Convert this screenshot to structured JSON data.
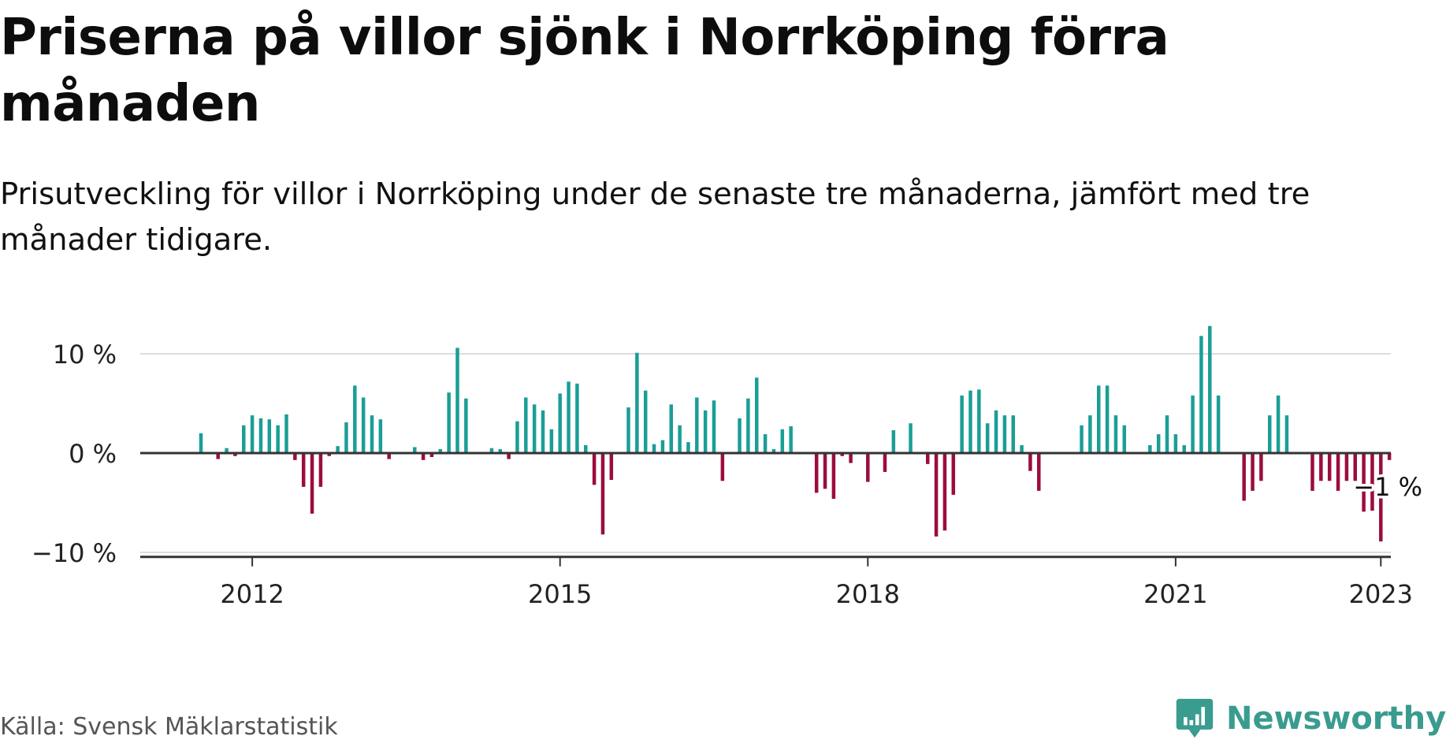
{
  "header": {
    "title": "Priserna på villor sjönk i Norrköping förra månaden",
    "subtitle": "Prisutveckling för villor i Norrköping under de senaste tre månaderna, jämfört med tre månader tidigare."
  },
  "footer": {
    "source": "Källa: Svensk Mäklarstatistik",
    "brand": "Newsworthy"
  },
  "colors": {
    "positive": "#1a9e97",
    "negative": "#9b0d3d",
    "axis": "#333333",
    "grid": "#dddddd",
    "brand": "#3a9b8f"
  },
  "chart_data": {
    "type": "bar",
    "start_month": "2011-07",
    "y_tick_labels": [
      "10 %",
      "0 %",
      "−10 %"
    ],
    "y_ticks": [
      10,
      0,
      -10
    ],
    "ylim": [
      -10.3,
      10.3
    ],
    "x_tick_labels": [
      "2012",
      "2015",
      "2018",
      "2021",
      "2023"
    ],
    "x_ticks": [
      "2012-01",
      "2015-01",
      "2018-01",
      "2021-01",
      "2023-01"
    ],
    "annotation": {
      "text": "−1 %",
      "month": "2023-02",
      "value": -0.7
    },
    "values": [
      2.0,
      0,
      -0.6,
      0.5,
      -0.3,
      2.8,
      3.8,
      3.5,
      3.4,
      2.8,
      3.9,
      -0.7,
      -3.4,
      -6.1,
      -3.4,
      -0.3,
      0.7,
      3.1,
      6.8,
      5.6,
      3.8,
      3.4,
      -0.6,
      0,
      0,
      0.6,
      -0.7,
      -0.4,
      0.4,
      6.1,
      10.6,
      5.5,
      0,
      0,
      0.5,
      0.4,
      -0.6,
      3.2,
      5.6,
      4.9,
      4.3,
      2.4,
      6.0,
      7.2,
      7.0,
      0.8,
      -3.2,
      -8.2,
      -2.7,
      0,
      4.6,
      10.1,
      6.3,
      0.9,
      1.3,
      4.9,
      2.8,
      1.1,
      5.6,
      4.3,
      5.3,
      -2.8,
      0,
      3.5,
      5.5,
      7.6,
      1.9,
      0.4,
      2.4,
      2.7,
      0,
      0,
      -4.0,
      -3.6,
      -4.6,
      -0.3,
      -1.0,
      0,
      -2.9,
      0,
      -1.9,
      2.3,
      0,
      3.0,
      0,
      -1.1,
      -8.4,
      -7.8,
      -4.2,
      5.8,
      6.3,
      6.4,
      3.0,
      4.3,
      3.8,
      3.8,
      0.8,
      -1.8,
      -3.8,
      0,
      0,
      0,
      0,
      2.8,
      3.8,
      6.8,
      6.8,
      3.8,
      2.8,
      0,
      0,
      0.8,
      1.9,
      3.8,
      1.9,
      0.8,
      5.8,
      11.8,
      12.8,
      5.8,
      0,
      0,
      -4.8,
      -3.8,
      -2.8,
      3.8,
      5.8,
      3.8,
      0,
      0,
      -3.8,
      -2.8,
      -2.8,
      -3.8,
      -2.8,
      -2.8,
      -5.9,
      -5.8,
      -8.9,
      -0.7
    ]
  }
}
